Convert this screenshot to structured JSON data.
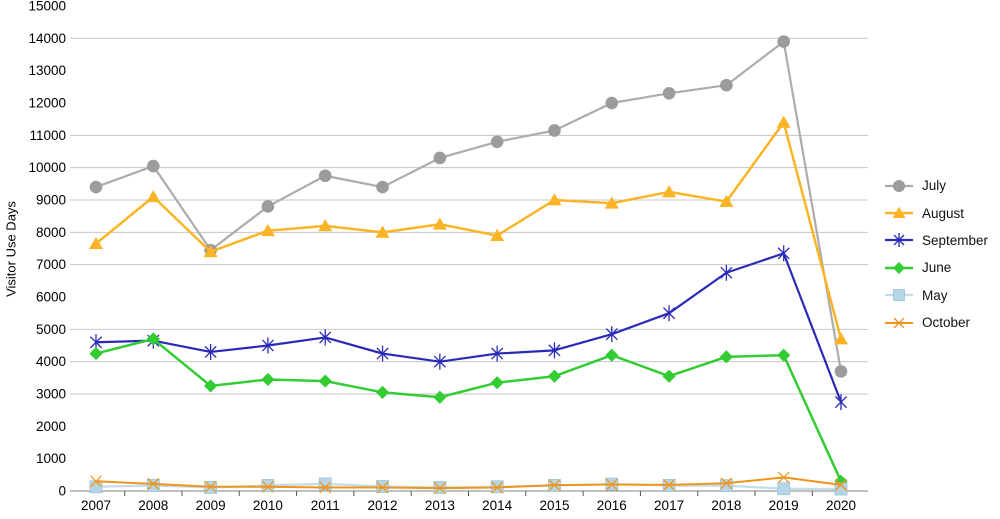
{
  "chart_data": {
    "type": "line",
    "title": "",
    "xlabel": "",
    "ylabel": "Visitor Use Days",
    "ylim": [
      0,
      15000
    ],
    "ytick_interval": 1000,
    "gridlines_at": [
      3000,
      4000,
      5000,
      7000,
      8000,
      9000,
      10000,
      11000,
      14000
    ],
    "grid": "horizontal-partial",
    "legend_position": "right",
    "x": [
      "2007",
      "2008",
      "2009",
      "2010",
      "2011",
      "2012",
      "2013",
      "2014",
      "2015",
      "2016",
      "2017",
      "2018",
      "2019",
      "2020"
    ],
    "series": [
      {
        "name": "July",
        "marker": "circle",
        "color": "#9C9C9C",
        "line_color": "#ACACAC",
        "values": [
          9400,
          10050,
          7450,
          8800,
          9750,
          9400,
          10300,
          10800,
          11150,
          12000,
          12300,
          12550,
          13900,
          3700
        ]
      },
      {
        "name": "August",
        "marker": "triangle",
        "color": "#FBB425",
        "line_color": "#FBB425",
        "values": [
          7650,
          9100,
          7400,
          8050,
          8200,
          8000,
          8250,
          7900,
          9000,
          8900,
          9250,
          8950,
          11400,
          4700
        ]
      },
      {
        "name": "September",
        "marker": "asterisk",
        "color": "#2A2AB8",
        "line_color": "#2A2AB8",
        "values": [
          4600,
          4650,
          4300,
          4500,
          4750,
          4250,
          4000,
          4250,
          4350,
          4850,
          5500,
          6750,
          7350,
          2750
        ]
      },
      {
        "name": "June",
        "marker": "diamond",
        "color": "#33CC33",
        "line_color": "#33CC33",
        "values": [
          4250,
          4700,
          3250,
          3450,
          3400,
          3050,
          2900,
          3350,
          3550,
          4200,
          3550,
          4150,
          4200,
          300
        ]
      },
      {
        "name": "May",
        "marker": "square",
        "color": "#B5D6E7",
        "line_color": "#C2DCEA",
        "values": [
          130,
          170,
          110,
          170,
          220,
          140,
          110,
          130,
          170,
          215,
          170,
          165,
          70,
          60
        ]
      },
      {
        "name": "October",
        "marker": "x",
        "color": "#F1941C",
        "line_color": "#F1941C",
        "values": [
          300,
          220,
          130,
          130,
          110,
          110,
          90,
          110,
          180,
          200,
          190,
          240,
          420,
          190
        ]
      }
    ],
    "colors": {
      "gridline": "#C6C6C6",
      "axis": "#9B9B9B",
      "text": "#000000"
    }
  }
}
